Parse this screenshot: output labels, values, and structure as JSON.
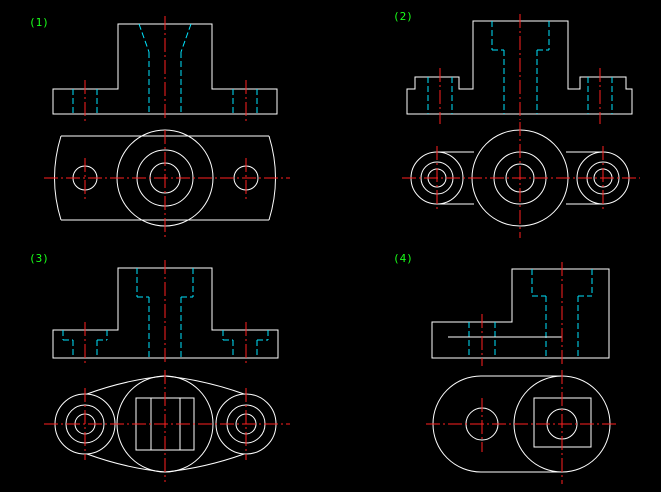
{
  "labels": {
    "fig1": "(1)",
    "fig2": "(2)",
    "fig3": "(3)",
    "fig4": "(4)"
  },
  "colors": {
    "background": "#000000",
    "outline": "#ffffff",
    "hidden": "#00e5ff",
    "center": "#ff2020",
    "label": "#19ff19"
  }
}
